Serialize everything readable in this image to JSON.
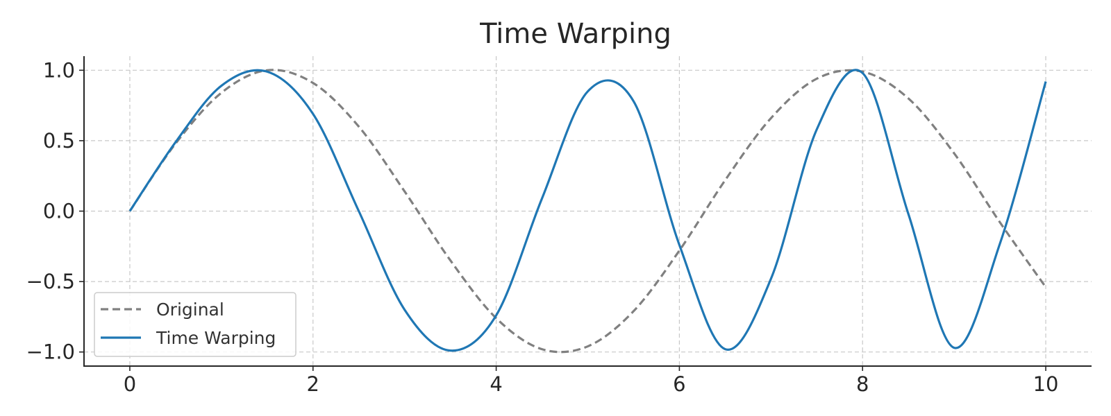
{
  "chart_data": {
    "type": "line",
    "title": "Time Warping",
    "xlabel": "",
    "ylabel": "",
    "xlim": [
      -0.5,
      10.5
    ],
    "ylim": [
      -1.1,
      1.1
    ],
    "xticks": [
      0,
      2,
      4,
      6,
      8,
      10
    ],
    "xtick_labels": [
      "0",
      "2",
      "4",
      "6",
      "8",
      "10"
    ],
    "yticks": [
      1.0,
      0.5,
      0.0,
      -0.5,
      -1.0
    ],
    "ytick_labels": [
      "1.0",
      "0.5",
      "0.0",
      "−0.5",
      "−1.0"
    ],
    "grid": true,
    "legend": {
      "placement": "lower-left"
    },
    "x": [
      0.0,
      0.5,
      1.0,
      1.5,
      2.0,
      2.5,
      3.0,
      3.5,
      4.0,
      4.5,
      5.0,
      5.5,
      6.0,
      6.5,
      7.0,
      7.5,
      8.0,
      8.5,
      9.0,
      9.5,
      10.0
    ],
    "series": [
      {
        "name": "Original",
        "color": "#808080",
        "style": "dashed",
        "values": [
          0.0,
          0.48,
          0.84,
          1.0,
          0.91,
          0.6,
          0.14,
          -0.35,
          -0.76,
          -0.98,
          -0.96,
          -0.71,
          -0.28,
          0.22,
          0.66,
          0.94,
          0.99,
          0.8,
          0.41,
          -0.08,
          -0.54
        ]
      },
      {
        "name": "Time Warping",
        "color": "#1f77b4",
        "style": "solid",
        "values": [
          0.0,
          0.49,
          0.89,
          0.99,
          0.69,
          0.0,
          -0.7,
          -0.99,
          -0.74,
          0.09,
          0.85,
          0.78,
          -0.24,
          -0.98,
          -0.48,
          0.58,
          0.98,
          -0.02,
          -0.97,
          -0.23,
          0.92
        ]
      }
    ]
  }
}
